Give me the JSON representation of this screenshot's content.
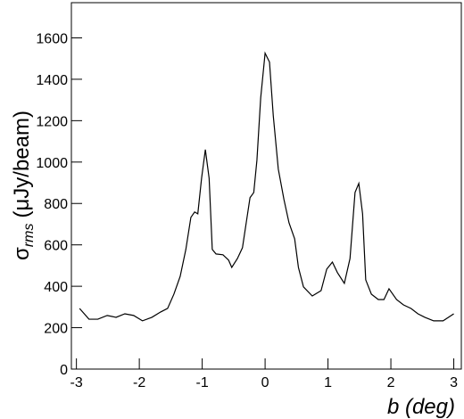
{
  "chart_data": {
    "type": "line",
    "xlabel": "b (deg)",
    "ylabel": {
      "symbol": "σ",
      "subscript": "rms",
      "unit": "(μJy/beam)"
    },
    "xlim": [
      -3.08,
      3.12
    ],
    "ylim": [
      0,
      1770
    ],
    "xticks": [
      -3,
      -2,
      -1,
      0,
      1,
      2,
      3
    ],
    "yticks": [
      0,
      200,
      400,
      600,
      800,
      1000,
      1200,
      1400,
      1600
    ],
    "series": [
      {
        "color": "#000000",
        "x": [
          -2.95,
          -2.8,
          -2.66,
          -2.51,
          -2.37,
          -2.23,
          -2.09,
          -1.95,
          -1.8,
          -1.66,
          -1.55,
          -1.45,
          -1.35,
          -1.26,
          -1.18,
          -1.12,
          -1.07,
          -1.01,
          -0.95,
          -0.89,
          -0.84,
          -0.78,
          -0.67,
          -0.58,
          -0.53,
          -0.44,
          -0.36,
          -0.3,
          -0.24,
          -0.18,
          -0.13,
          -0.07,
          0,
          0.07,
          0.13,
          0.21,
          0.3,
          0.38,
          0.47,
          0.53,
          0.61,
          0.75,
          0.89,
          0.98,
          1.07,
          1.15,
          1.26,
          1.35,
          1.43,
          1.49,
          1.55,
          1.6,
          1.69,
          1.8,
          1.89,
          1.97,
          2.09,
          2.2,
          2.32,
          2.43,
          2.54,
          2.68,
          2.83,
          3.0
        ],
        "values": [
          293,
          241,
          241,
          259,
          250,
          267,
          259,
          233,
          250,
          276,
          293,
          362,
          448,
          578,
          733,
          759,
          750,
          922,
          1060,
          922,
          578,
          556,
          552,
          526,
          491,
          534,
          586,
          707,
          828,
          853,
          1009,
          1310,
          1526,
          1483,
          1224,
          966,
          819,
          707,
          629,
          491,
          397,
          353,
          379,
          483,
          517,
          466,
          414,
          534,
          853,
          897,
          750,
          431,
          362,
          336,
          336,
          388,
          336,
          310,
          293,
          267,
          250,
          233,
          233,
          267
        ]
      }
    ]
  }
}
